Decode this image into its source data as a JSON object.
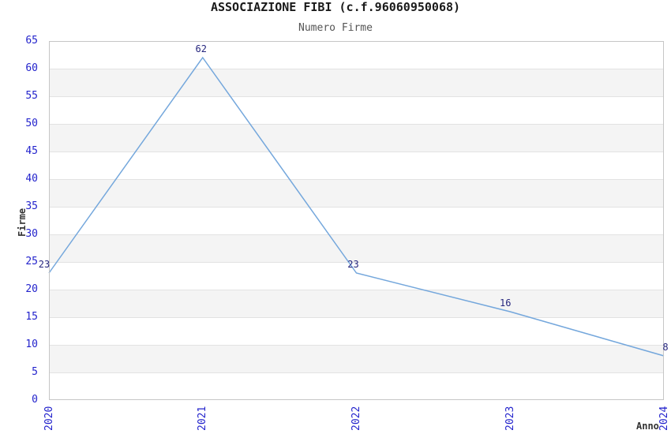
{
  "header": {
    "title": "ASSOCIAZIONE FIBI (c.f.96060950068)",
    "subtitle": "Numero Firme"
  },
  "chart_data": {
    "type": "line",
    "title": "ASSOCIAZIONE FIBI (c.f.96060950068)",
    "subtitle": "Numero Firme",
    "categories": [
      "2020",
      "2021",
      "2022",
      "2023",
      "2024"
    ],
    "values": [
      23,
      62,
      23,
      16,
      8
    ],
    "point_labels": [
      "23",
      "62",
      "23",
      "16",
      "8"
    ],
    "xlabel": "Anno",
    "ylabel": "Firme",
    "ylim": [
      0,
      65
    ],
    "ytick_step": 5,
    "yticks": [
      0,
      5,
      10,
      15,
      20,
      25,
      30,
      35,
      40,
      45,
      50,
      55,
      60,
      65
    ],
    "grid": "horizontal-bands",
    "legend_position": "none"
  },
  "style": {
    "line_color": "#74a7dc",
    "tick_label_color": "#2323cc",
    "point_label_color": "#26267e",
    "band_fill": "#f4f4f4",
    "grid_color": "#e2e2e2",
    "frame_color": "#c6c6c6",
    "title_color": "#1a1a1a",
    "subtitle_color": "#555555",
    "axis_title_color": "#333333"
  }
}
